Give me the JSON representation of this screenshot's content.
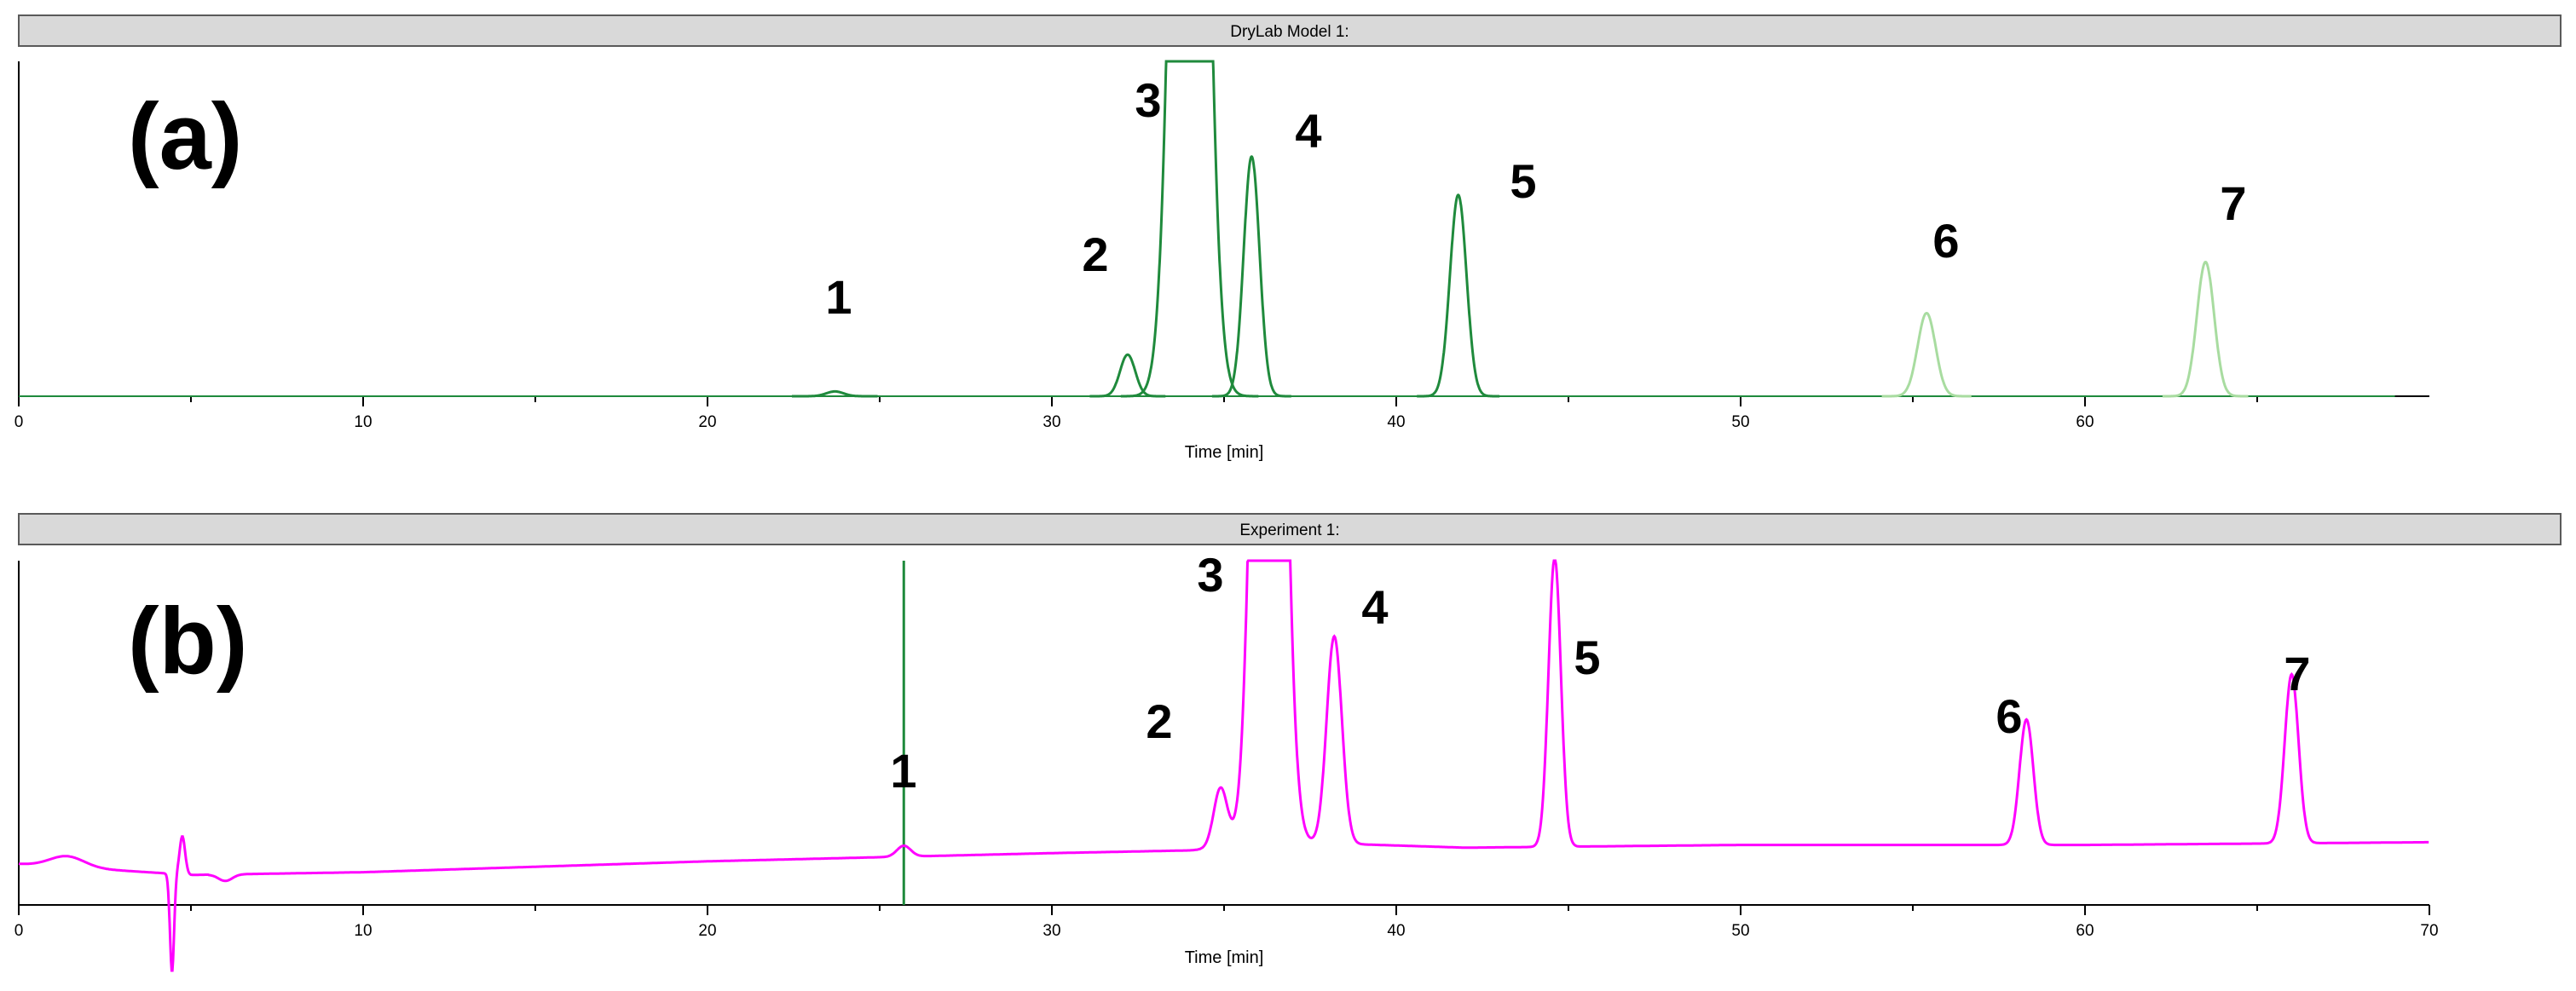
{
  "chart_data": [
    {
      "type": "line",
      "title": "DryLab Model 1:",
      "panel_label": "(a)",
      "xlabel": "Time [min]",
      "ylabel": "",
      "xlim": [
        0,
        70
      ],
      "x_ticks": [
        0,
        10,
        20,
        30,
        40,
        50,
        60
      ],
      "x_tick_labels": [
        "0",
        "10",
        "20",
        "30",
        "40",
        "50",
        "60"
      ],
      "grid": false,
      "series": [
        {
          "color": "#1f8a3c",
          "peaks": [
            {
              "label": "1",
              "rt": 23.7,
              "height": 0.015,
              "width": 0.25,
              "color": "#1f8a3c"
            },
            {
              "label": "2",
              "rt": 32.2,
              "height": 0.13,
              "width": 0.22,
              "color": "#1f8a3c"
            },
            {
              "label": "3",
              "rt": 34.0,
              "height": 4.5,
              "width": 0.4,
              "color": "#1f8a3c"
            },
            {
              "label": "4",
              "rt": 35.8,
              "height": 0.75,
              "width": 0.23,
              "color": "#1f8a3c"
            },
            {
              "label": "5",
              "rt": 41.8,
              "height": 0.63,
              "width": 0.24,
              "color": "#1f8a3c"
            },
            {
              "label": "6",
              "rt": 55.4,
              "height": 0.26,
              "width": 0.26,
              "color": "#a8dca0"
            },
            {
              "label": "7",
              "rt": 63.5,
              "height": 0.42,
              "width": 0.25,
              "color": "#a8dca0"
            }
          ]
        }
      ]
    },
    {
      "type": "line",
      "title": "Experiment 1:",
      "panel_label": "(b)",
      "xlabel": "Time [min]",
      "ylabel": "",
      "xlim": [
        0,
        70
      ],
      "x_ticks": [
        0,
        10,
        20,
        30,
        40,
        50,
        60,
        70
      ],
      "x_tick_labels": [
        "0",
        "10",
        "20",
        "30",
        "40",
        "50",
        "60",
        "70"
      ],
      "grid": false,
      "marker_line_x": 25.7,
      "marker_line_color": "#1f8a3c",
      "series": [
        {
          "color": "#ff00ff",
          "baseline": [
            [
              0,
              0.075
            ],
            [
              5,
              0.055
            ],
            [
              10,
              0.06
            ],
            [
              20,
              0.08
            ],
            [
              30,
              0.095
            ],
            [
              34,
              0.1
            ],
            [
              37,
              0.115
            ],
            [
              42,
              0.105
            ],
            [
              50,
              0.11
            ],
            [
              60,
              0.11
            ],
            [
              70,
              0.115
            ]
          ],
          "peaks": [
            {
              "label": "",
              "rt": 1.4,
              "height": 0.02,
              "width": 0.5
            },
            {
              "label": "1",
              "rt": 25.7,
              "height": 0.02,
              "width": 0.2
            },
            {
              "label": "2",
              "rt": 34.9,
              "height": 0.11,
              "width": 0.2
            },
            {
              "label": "3",
              "rt": 36.3,
              "height": 2.5,
              "width": 0.35
            },
            {
              "label": "4",
              "rt": 38.2,
              "height": 0.38,
              "width": 0.22
            },
            {
              "label": "5",
              "rt": 44.6,
              "height": 0.53,
              "width": 0.18
            },
            {
              "label": "6",
              "rt": 58.3,
              "height": 0.23,
              "width": 0.2
            },
            {
              "label": "7",
              "rt": 66.0,
              "height": 0.31,
              "width": 0.2
            }
          ]
        }
      ]
    }
  ]
}
